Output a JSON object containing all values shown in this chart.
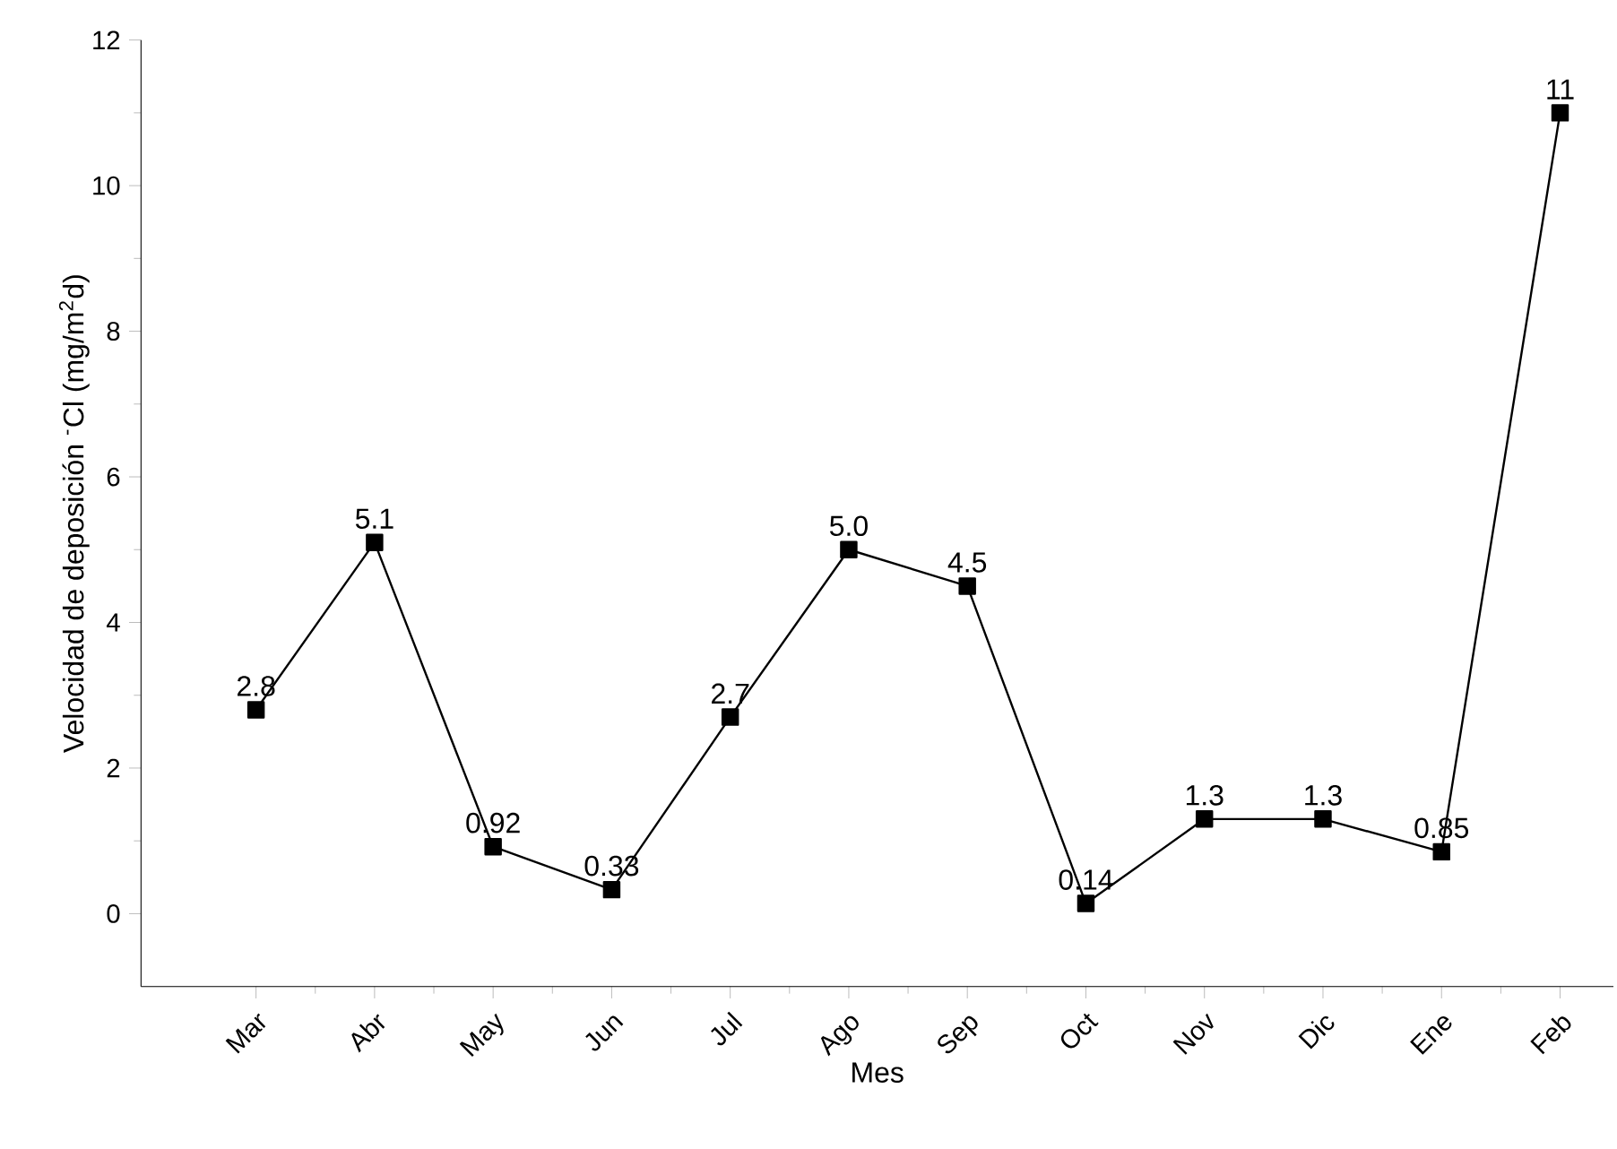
{
  "chart_data": {
    "type": "line",
    "xlabel": "Mes",
    "ylabel": "Velocidad de deposición $^{-}$Cl  (mg/m$^{2}$d)",
    "categories": [
      "Mar",
      "Abr",
      "May",
      "Jun",
      "Jul",
      "Ago",
      "Sep",
      "Oct",
      "Nov",
      "Dic",
      "Ene",
      "Feb"
    ],
    "values": [
      2.8,
      5.1,
      0.92,
      0.33,
      2.7,
      5.0,
      4.5,
      0.14,
      1.3,
      1.3,
      0.85,
      11
    ],
    "value_labels": [
      "2.8",
      "5.1",
      "0.92",
      "0.33",
      "2.7",
      "5.0",
      "4.5",
      "0.14",
      "1.3",
      "1.3",
      "0.85",
      "11"
    ],
    "color": "#000000",
    "marker": "square",
    "line_style": "solid",
    "grid": false,
    "ylim": [
      -1,
      12
    ],
    "yticks": [
      0,
      2,
      4,
      6,
      8,
      10,
      12
    ]
  }
}
